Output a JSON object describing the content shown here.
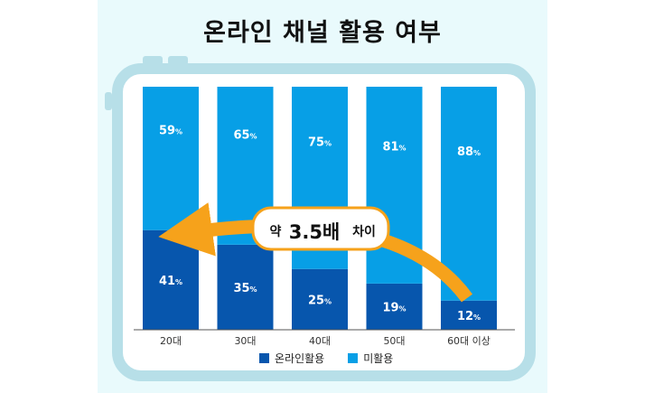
{
  "title": "온라인 채널 활용 여부",
  "colors": {
    "online": "#0756ad",
    "non_use": "#079fe6",
    "frame": "#b7dfe8",
    "arrow": "#f6a21b",
    "background": "#e9fafc"
  },
  "callout": {
    "prefix": "약",
    "value": "3.5배",
    "suffix": "차이"
  },
  "chart_data": {
    "type": "bar",
    "stacked": true,
    "categories": [
      "20대",
      "30대",
      "40대",
      "50대",
      "60대 이상"
    ],
    "series": [
      {
        "name": "온라인활용",
        "values": [
          41,
          35,
          25,
          19,
          12
        ]
      },
      {
        "name": "미활용",
        "values": [
          59,
          65,
          75,
          81,
          88
        ]
      }
    ],
    "value_suffix": "%",
    "ylim": [
      0,
      100
    ],
    "legend_position": "bottom"
  }
}
